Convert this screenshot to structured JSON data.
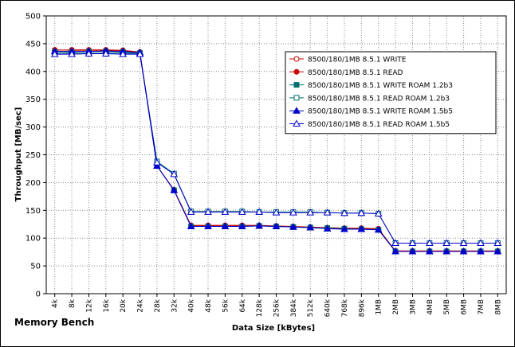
{
  "chart_data": {
    "type": "line",
    "caption": "Memory Bench",
    "xlabel": "Data Size [kBytes]",
    "ylabel": "Throughput [MB/sec]",
    "ylim": [
      0,
      500
    ],
    "y_ticks": [
      0,
      50,
      100,
      150,
      200,
      250,
      300,
      350,
      400,
      450,
      500
    ],
    "grid": true,
    "legend_position": "top-right",
    "categories": [
      "4k",
      "8k",
      "12k",
      "16k",
      "20k",
      "24k",
      "28k",
      "32k",
      "40k",
      "48k",
      "56k",
      "64k",
      "128k",
      "256k",
      "384k",
      "512k",
      "640k",
      "768k",
      "896k",
      "1MB",
      "2MB",
      "3MB",
      "4MB",
      "5MB",
      "6MB",
      "7MB",
      "8MB"
    ],
    "series": [
      {
        "name": "8500/180/1MB 8.5.1 WRITE",
        "color": "#cc0000",
        "marker": "circle-open",
        "values": [
          439,
          438,
          438,
          438,
          437,
          434,
          230,
          187,
          122,
          122,
          122,
          122,
          122,
          121,
          120,
          119,
          118,
          117,
          117,
          116,
          76,
          76,
          76,
          76,
          76,
          76,
          76
        ]
      },
      {
        "name": "8500/180/1MB 8.5.1 READ",
        "color": "#cc0000",
        "marker": "circle-filled",
        "values": [
          438,
          439,
          439,
          439,
          438,
          435,
          230,
          187,
          123,
          123,
          123,
          123,
          123,
          122,
          121,
          120,
          119,
          118,
          118,
          117,
          77,
          77,
          77,
          77,
          77,
          77,
          77
        ]
      },
      {
        "name": "8500/180/1MB 8.5.1 WRITE ROAM 1.2b3",
        "color": "#007070",
        "marker": "square-filled",
        "values": [
          435,
          435,
          436,
          436,
          435,
          433,
          230,
          186,
          121,
          121,
          121,
          121,
          122,
          121,
          120,
          119,
          118,
          117,
          116,
          115,
          76,
          76,
          76,
          76,
          76,
          76,
          76
        ]
      },
      {
        "name": "8500/180/1MB 8.5.1 READ ROAM 1.2b3",
        "color": "#007070",
        "marker": "square-open",
        "values": [
          432,
          433,
          433,
          433,
          433,
          432,
          238,
          216,
          148,
          148,
          148,
          148,
          147,
          147,
          147,
          147,
          146,
          145,
          145,
          144,
          91,
          91,
          91,
          91,
          91,
          91,
          91
        ]
      },
      {
        "name": "8500/180/1MB 8.5.1 WRITE ROAM 1.5b5",
        "color": "#0000cc",
        "marker": "triangle-filled",
        "values": [
          436,
          436,
          436,
          437,
          436,
          434,
          230,
          186,
          121,
          121,
          121,
          121,
          122,
          121,
          120,
          119,
          117,
          116,
          116,
          115,
          76,
          76,
          76,
          76,
          76,
          76,
          76
        ]
      },
      {
        "name": "8500/180/1MB 8.5.1 READ ROAM 1.5b5",
        "color": "#0000cc",
        "marker": "triangle-open",
        "values": [
          431,
          431,
          432,
          432,
          431,
          431,
          236,
          215,
          147,
          147,
          147,
          147,
          147,
          146,
          146,
          146,
          146,
          145,
          145,
          144,
          91,
          91,
          91,
          91,
          91,
          91,
          91
        ]
      }
    ]
  }
}
